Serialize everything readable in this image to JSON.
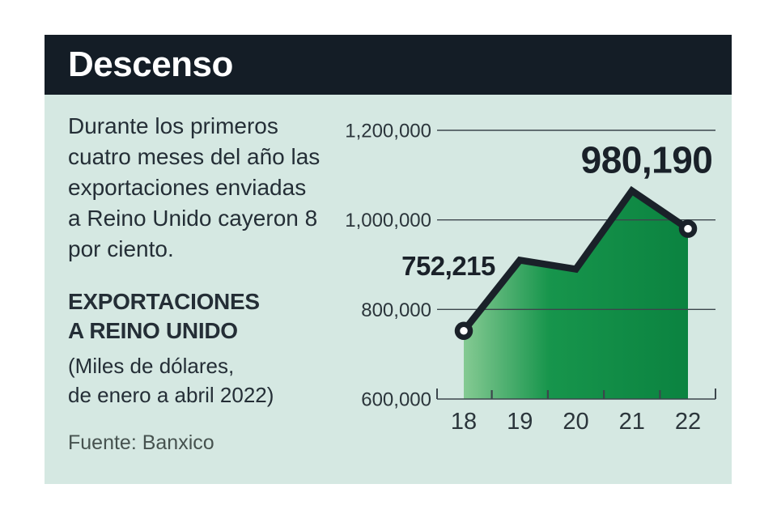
{
  "panel": {
    "title": "Descenso",
    "description_lines": [
      "Durante los primeros",
      "cuatro meses del año las",
      "exportaciones enviadas",
      "a Reino Unido cayeron 8",
      "por ciento."
    ],
    "subtitle_lines": [
      "EXPORTACIONES",
      "A REINO UNIDO"
    ],
    "note_lines": [
      "(Miles de dólares,",
      "de enero a abril 2022)"
    ],
    "source": "Fuente: Banxico"
  },
  "colors": {
    "page_bg": "#ffffff",
    "header_bg": "#141d26",
    "panel_bg": "#d5e8e2",
    "text_dark": "#242e36",
    "text_gray": "#46524f",
    "chart_text": "#2b353b",
    "grid": "#3c464c",
    "line": "#1a2129",
    "marker_fill": "#ffffff"
  },
  "chart_data": {
    "type": "area",
    "title": "EXPORTACIONES A REINO UNIDO",
    "units": "Miles de dólares, de enero a abril 2022",
    "categories": [
      "18",
      "19",
      "20",
      "21",
      "22"
    ],
    "values": [
      752215,
      910000,
      890000,
      1065000,
      980190
    ],
    "labeled_points": [
      {
        "index": 0,
        "label": "752,215"
      },
      {
        "index": 4,
        "label": "980,190"
      }
    ],
    "ylim": [
      600000,
      1200000
    ],
    "yticks": [
      {
        "value": 600000,
        "label": "600,000"
      },
      {
        "value": 800000,
        "label": "800,000"
      },
      {
        "value": 1000000,
        "label": "1,000,000"
      },
      {
        "value": 1200000,
        "label": "1,200,000"
      }
    ],
    "grid": "horizontal",
    "legend": "none",
    "area_gradient": [
      "#85ca93",
      "#17954c",
      "#0b8340"
    ]
  }
}
